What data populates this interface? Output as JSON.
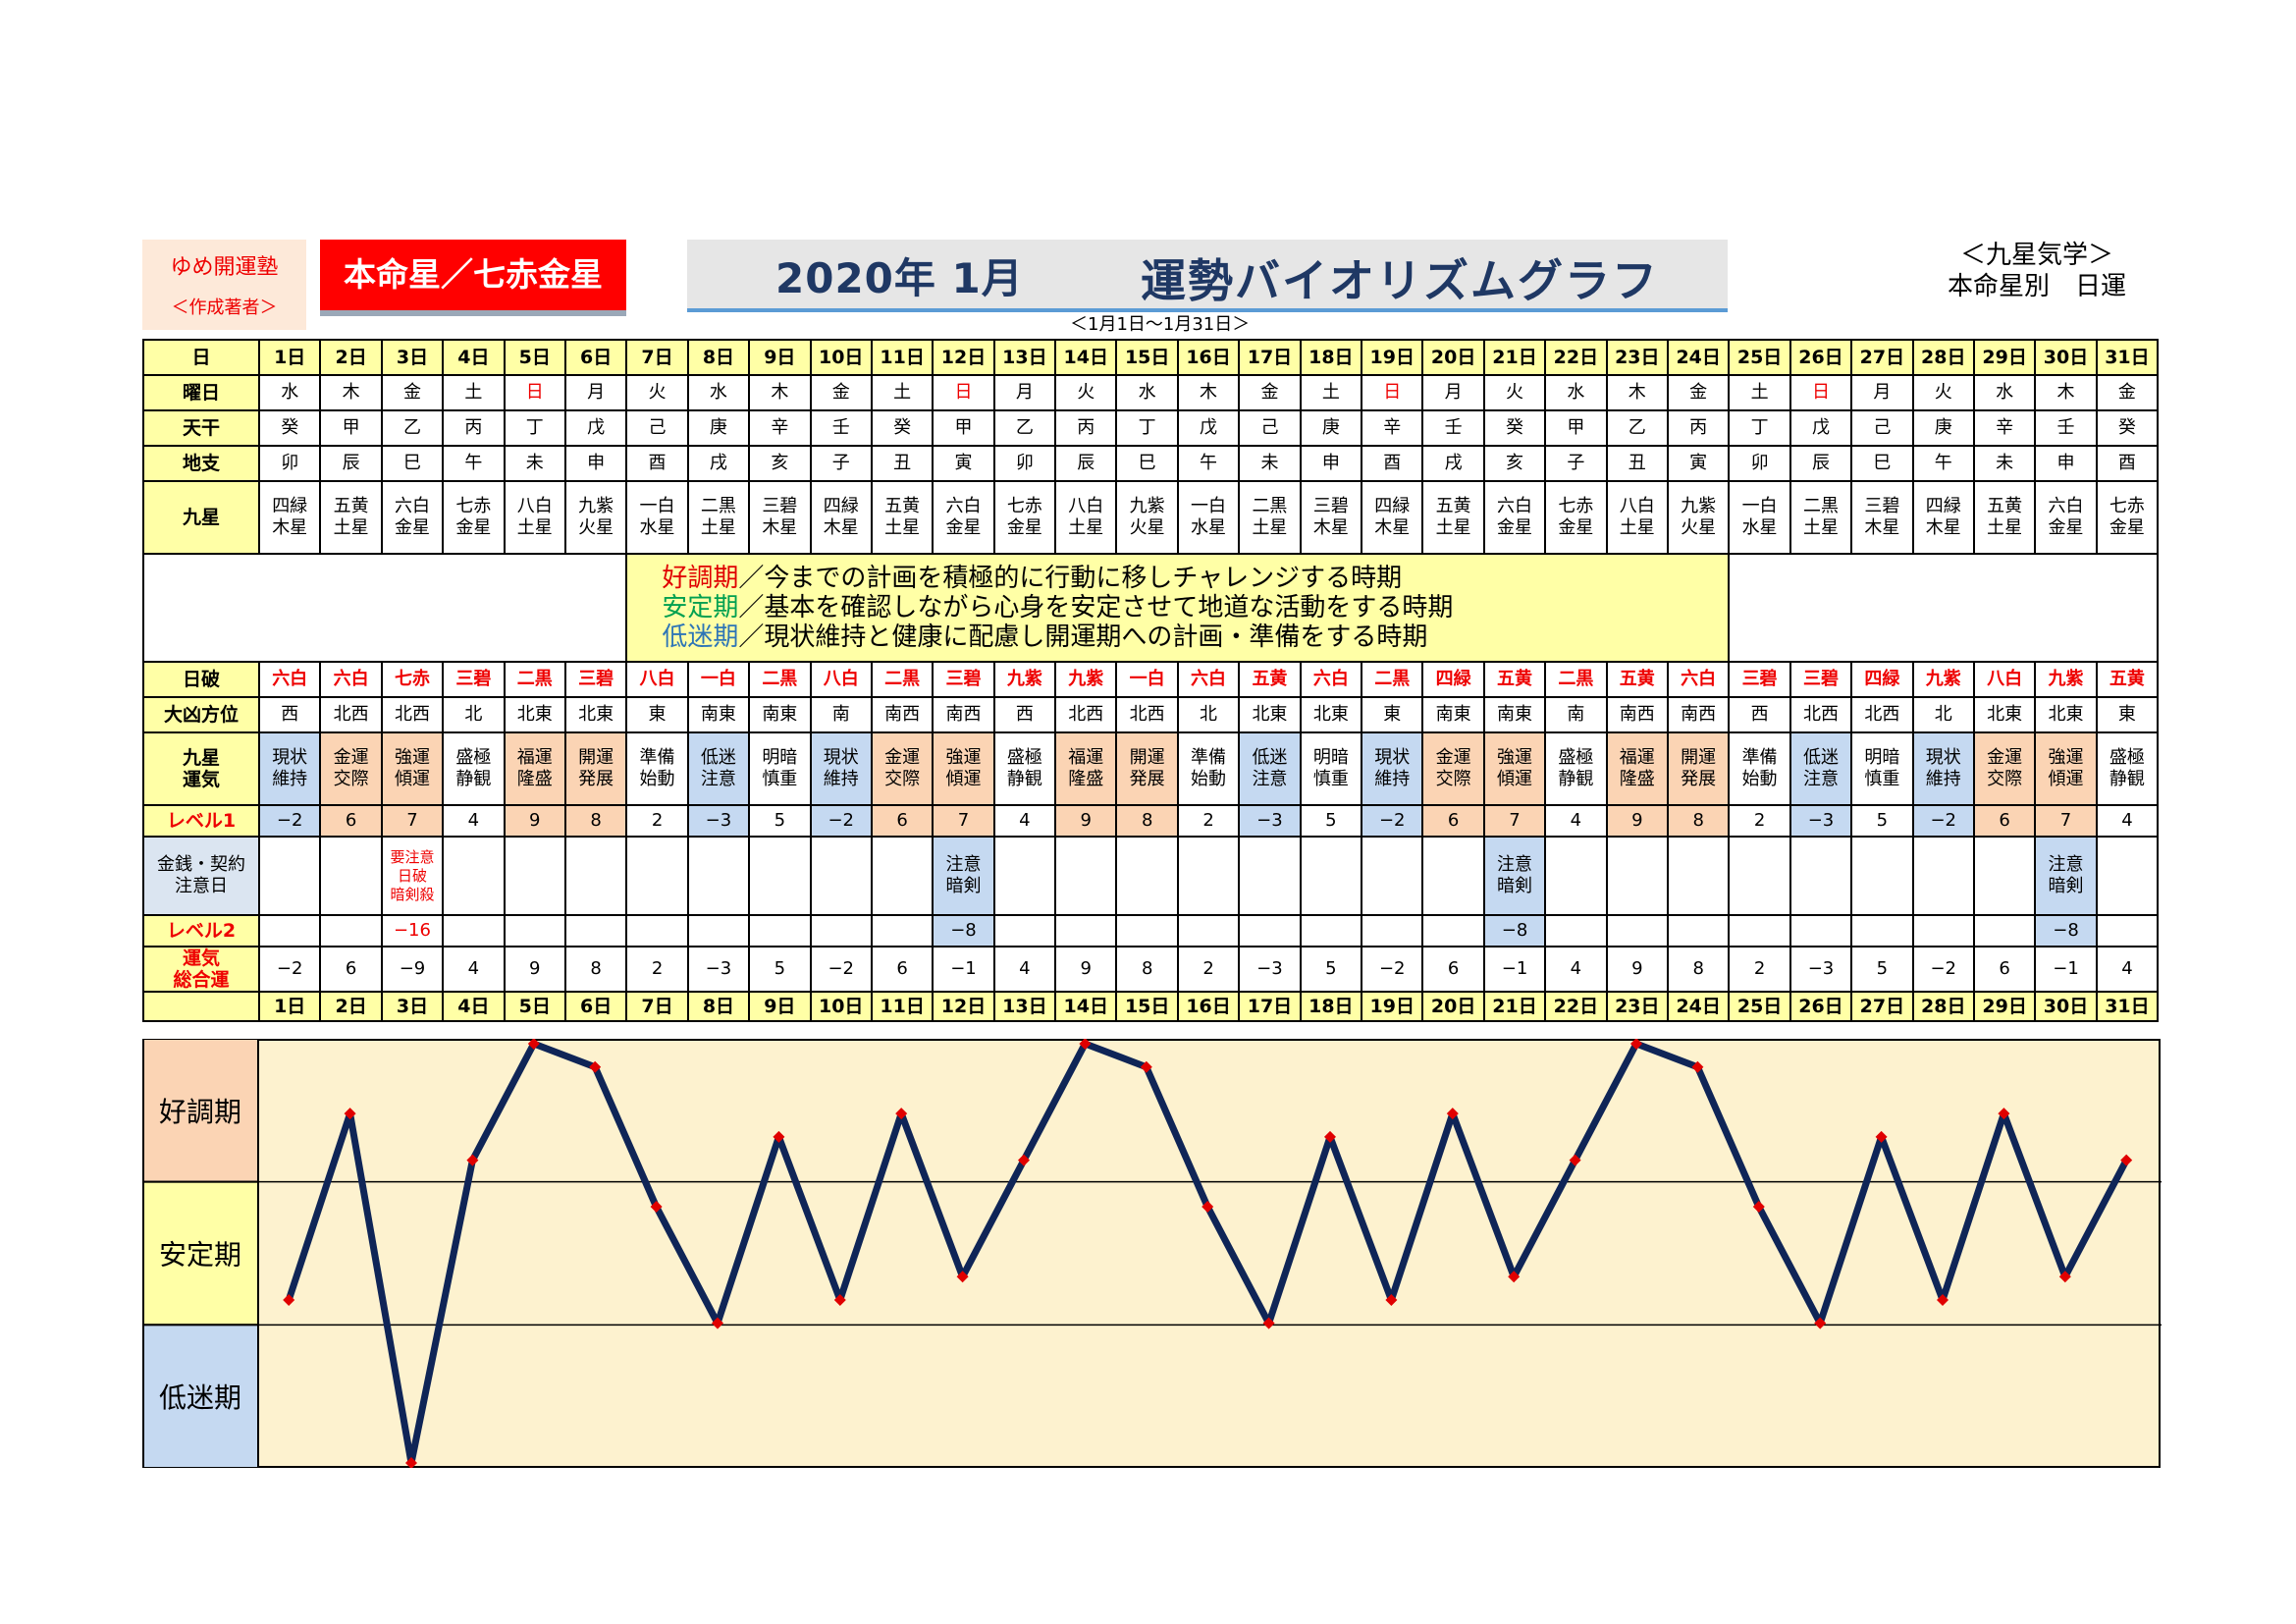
{
  "header": {
    "school_name": "ゆめ開運塾",
    "author_note": "＜作成著者＞",
    "honmei": "本命星／七赤金星",
    "title_year": "2020年 1月",
    "title_main": "運勢バイオリズムグラフ",
    "range": "＜1月1日～1月31日＞",
    "kyusei_line1": "＜九星気学＞",
    "kyusei_line2": "本命星別　日運"
  },
  "row_labels": {
    "day": "日",
    "weekday": "曜日",
    "tenkan": "天干",
    "chishi": "地支",
    "kyusei": "九星",
    "nippa": "日破",
    "daikyo": "大凶方位",
    "unki_1": "九星",
    "unki_2": "運気",
    "level1": "レベル1",
    "kinsen_1": "金銭・契約",
    "kinsen_2": "注意日",
    "level2": "レベル2",
    "sogo_1": "運気",
    "sogo_2": "総合運"
  },
  "legend": [
    {
      "term": "好調期",
      "text": "／今までの計画を積極的に行動に移しチャレンジする時期",
      "color": "#e00000"
    },
    {
      "term": "安定期",
      "text": "／基本を確認しながら心身を安定させて地道な活動をする時期",
      "color": "#00a050"
    },
    {
      "term": "低迷期",
      "text": "／現状維持と健康に配慮し開運期への計画・準備をする時期",
      "color": "#2e75b6"
    }
  ],
  "zones": [
    "好調期",
    "安定期",
    "低迷期"
  ],
  "zone_colors": {
    "high": "#fbd4b4",
    "mid": "#ffffa6",
    "low": "#c5d9f1",
    "plot_bg": "#fdf2cf",
    "line": "#0f2557",
    "marker": "#e00000"
  },
  "days": [
    {
      "d": "1日",
      "w": "水",
      "s": false,
      "t": "癸",
      "c": "卯",
      "k1": "四緑",
      "k2": "木星",
      "h": "六白",
      "o": "西",
      "u1": "現状",
      "u2": "維持",
      "ut": "neg",
      "l1": "−2",
      "kz": "",
      "l2": "",
      "tot": "−2"
    },
    {
      "d": "2日",
      "w": "木",
      "s": false,
      "t": "甲",
      "c": "辰",
      "k1": "五黄",
      "k2": "土星",
      "h": "六白",
      "o": "北西",
      "u1": "金運",
      "u2": "交際",
      "ut": "pos",
      "l1": "6",
      "kz": "",
      "l2": "",
      "tot": "6"
    },
    {
      "d": "3日",
      "w": "金",
      "s": false,
      "t": "乙",
      "c": "巳",
      "k1": "六白",
      "k2": "金星",
      "h": "七赤",
      "o": "北西",
      "u1": "強運",
      "u2": "傾運",
      "ut": "pos",
      "l1": "7",
      "kz": "要注意\n日破\n暗剣殺",
      "kzt": "warn",
      "l2": "−16",
      "tot": "−9"
    },
    {
      "d": "4日",
      "w": "土",
      "s": false,
      "t": "丙",
      "c": "午",
      "k1": "七赤",
      "k2": "金星",
      "h": "三碧",
      "o": "北",
      "u1": "盛極",
      "u2": "静観",
      "ut": "neu",
      "l1": "4",
      "kz": "",
      "l2": "",
      "tot": "4"
    },
    {
      "d": "5日",
      "w": "日",
      "s": true,
      "t": "丁",
      "c": "未",
      "k1": "八白",
      "k2": "土星",
      "h": "二黒",
      "o": "北東",
      "u1": "福運",
      "u2": "隆盛",
      "ut": "pos",
      "l1": "9",
      "kz": "",
      "l2": "",
      "tot": "9"
    },
    {
      "d": "6日",
      "w": "月",
      "s": false,
      "t": "戊",
      "c": "申",
      "k1": "九紫",
      "k2": "火星",
      "h": "三碧",
      "o": "北東",
      "u1": "開運",
      "u2": "発展",
      "ut": "pos",
      "l1": "8",
      "kz": "",
      "l2": "",
      "tot": "8"
    },
    {
      "d": "7日",
      "w": "火",
      "s": false,
      "t": "己",
      "c": "酉",
      "k1": "一白",
      "k2": "水星",
      "h": "八白",
      "o": "東",
      "u1": "準備",
      "u2": "始動",
      "ut": "neu",
      "l1": "2",
      "kz": "",
      "l2": "",
      "tot": "2"
    },
    {
      "d": "8日",
      "w": "水",
      "s": false,
      "t": "庚",
      "c": "戌",
      "k1": "二黒",
      "k2": "土星",
      "h": "一白",
      "o": "南東",
      "u1": "低迷",
      "u2": "注意",
      "ut": "neg",
      "l1": "−3",
      "kz": "",
      "l2": "",
      "tot": "−3"
    },
    {
      "d": "9日",
      "w": "木",
      "s": false,
      "t": "辛",
      "c": "亥",
      "k1": "三碧",
      "k2": "木星",
      "h": "二黒",
      "o": "南東",
      "u1": "明暗",
      "u2": "慎重",
      "ut": "neu",
      "l1": "5",
      "kz": "",
      "l2": "",
      "tot": "5"
    },
    {
      "d": "10日",
      "w": "金",
      "s": false,
      "t": "壬",
      "c": "子",
      "k1": "四緑",
      "k2": "木星",
      "h": "八白",
      "o": "南",
      "u1": "現状",
      "u2": "維持",
      "ut": "neg",
      "l1": "−2",
      "kz": "",
      "l2": "",
      "tot": "−2"
    },
    {
      "d": "11日",
      "w": "土",
      "s": false,
      "t": "癸",
      "c": "丑",
      "k1": "五黄",
      "k2": "土星",
      "h": "二黒",
      "o": "南西",
      "u1": "金運",
      "u2": "交際",
      "ut": "pos",
      "l1": "6",
      "kz": "",
      "l2": "",
      "tot": "6"
    },
    {
      "d": "12日",
      "w": "日",
      "s": true,
      "t": "甲",
      "c": "寅",
      "k1": "六白",
      "k2": "金星",
      "h": "三碧",
      "o": "南西",
      "u1": "強運",
      "u2": "傾運",
      "ut": "pos",
      "l1": "7",
      "kz": "注意\n暗剣",
      "kzt": "blue",
      "l2": "−8",
      "tot": "−1"
    },
    {
      "d": "13日",
      "w": "月",
      "s": false,
      "t": "乙",
      "c": "卯",
      "k1": "七赤",
      "k2": "金星",
      "h": "九紫",
      "o": "西",
      "u1": "盛極",
      "u2": "静観",
      "ut": "neu",
      "l1": "4",
      "kz": "",
      "l2": "",
      "tot": "4"
    },
    {
      "d": "14日",
      "w": "火",
      "s": false,
      "t": "丙",
      "c": "辰",
      "k1": "八白",
      "k2": "土星",
      "h": "九紫",
      "o": "北西",
      "u1": "福運",
      "u2": "隆盛",
      "ut": "pos",
      "l1": "9",
      "kz": "",
      "l2": "",
      "tot": "9"
    },
    {
      "d": "15日",
      "w": "水",
      "s": false,
      "t": "丁",
      "c": "巳",
      "k1": "九紫",
      "k2": "火星",
      "h": "一白",
      "o": "北西",
      "u1": "開運",
      "u2": "発展",
      "ut": "pos",
      "l1": "8",
      "kz": "",
      "l2": "",
      "tot": "8"
    },
    {
      "d": "16日",
      "w": "木",
      "s": false,
      "t": "戊",
      "c": "午",
      "k1": "一白",
      "k2": "水星",
      "h": "六白",
      "o": "北",
      "u1": "準備",
      "u2": "始動",
      "ut": "neu",
      "l1": "2",
      "kz": "",
      "l2": "",
      "tot": "2"
    },
    {
      "d": "17日",
      "w": "金",
      "s": false,
      "t": "己",
      "c": "未",
      "k1": "二黒",
      "k2": "土星",
      "h": "五黄",
      "o": "北東",
      "u1": "低迷",
      "u2": "注意",
      "ut": "neg",
      "l1": "−3",
      "kz": "",
      "l2": "",
      "tot": "−3"
    },
    {
      "d": "18日",
      "w": "土",
      "s": false,
      "t": "庚",
      "c": "申",
      "k1": "三碧",
      "k2": "木星",
      "h": "六白",
      "o": "北東",
      "u1": "明暗",
      "u2": "慎重",
      "ut": "neu",
      "l1": "5",
      "kz": "",
      "l2": "",
      "tot": "5"
    },
    {
      "d": "19日",
      "w": "日",
      "s": true,
      "t": "辛",
      "c": "酉",
      "k1": "四緑",
      "k2": "木星",
      "h": "二黒",
      "o": "東",
      "u1": "現状",
      "u2": "維持",
      "ut": "neg",
      "l1": "−2",
      "kz": "",
      "l2": "",
      "tot": "−2"
    },
    {
      "d": "20日",
      "w": "月",
      "s": false,
      "t": "壬",
      "c": "戌",
      "k1": "五黄",
      "k2": "土星",
      "h": "四緑",
      "o": "南東",
      "u1": "金運",
      "u2": "交際",
      "ut": "pos",
      "l1": "6",
      "kz": "",
      "l2": "",
      "tot": "6"
    },
    {
      "d": "21日",
      "w": "火",
      "s": false,
      "t": "癸",
      "c": "亥",
      "k1": "六白",
      "k2": "金星",
      "h": "五黄",
      "o": "南東",
      "u1": "強運",
      "u2": "傾運",
      "ut": "pos",
      "l1": "7",
      "kz": "注意\n暗剣",
      "kzt": "blue",
      "l2": "−8",
      "tot": "−1"
    },
    {
      "d": "22日",
      "w": "水",
      "s": false,
      "t": "甲",
      "c": "子",
      "k1": "七赤",
      "k2": "金星",
      "h": "二黒",
      "o": "南",
      "u1": "盛極",
      "u2": "静観",
      "ut": "neu",
      "l1": "4",
      "kz": "",
      "l2": "",
      "tot": "4"
    },
    {
      "d": "23日",
      "w": "木",
      "s": false,
      "t": "乙",
      "c": "丑",
      "k1": "八白",
      "k2": "土星",
      "h": "五黄",
      "o": "南西",
      "u1": "福運",
      "u2": "隆盛",
      "ut": "pos",
      "l1": "9",
      "kz": "",
      "l2": "",
      "tot": "9"
    },
    {
      "d": "24日",
      "w": "金",
      "s": false,
      "t": "丙",
      "c": "寅",
      "k1": "九紫",
      "k2": "火星",
      "h": "六白",
      "o": "南西",
      "u1": "開運",
      "u2": "発展",
      "ut": "pos",
      "l1": "8",
      "kz": "",
      "l2": "",
      "tot": "8"
    },
    {
      "d": "25日",
      "w": "土",
      "s": false,
      "t": "丁",
      "c": "卯",
      "k1": "一白",
      "k2": "水星",
      "h": "三碧",
      "o": "西",
      "u1": "準備",
      "u2": "始動",
      "ut": "neu",
      "l1": "2",
      "kz": "",
      "l2": "",
      "tot": "2"
    },
    {
      "d": "26日",
      "w": "日",
      "s": true,
      "t": "戊",
      "c": "辰",
      "k1": "二黒",
      "k2": "土星",
      "h": "三碧",
      "o": "北西",
      "u1": "低迷",
      "u2": "注意",
      "ut": "neg",
      "l1": "−3",
      "kz": "",
      "l2": "",
      "tot": "−3"
    },
    {
      "d": "27日",
      "w": "月",
      "s": false,
      "t": "己",
      "c": "巳",
      "k1": "三碧",
      "k2": "木星",
      "h": "四緑",
      "o": "北西",
      "u1": "明暗",
      "u2": "慎重",
      "ut": "neu",
      "l1": "5",
      "kz": "",
      "l2": "",
      "tot": "5"
    },
    {
      "d": "28日",
      "w": "火",
      "s": false,
      "t": "庚",
      "c": "午",
      "k1": "四緑",
      "k2": "木星",
      "h": "九紫",
      "o": "北",
      "u1": "現状",
      "u2": "維持",
      "ut": "neg",
      "l1": "−2",
      "kz": "",
      "l2": "",
      "tot": "−2"
    },
    {
      "d": "29日",
      "w": "水",
      "s": false,
      "t": "辛",
      "c": "未",
      "k1": "五黄",
      "k2": "土星",
      "h": "八白",
      "o": "北東",
      "u1": "金運",
      "u2": "交際",
      "ut": "pos",
      "l1": "6",
      "kz": "",
      "l2": "",
      "tot": "6"
    },
    {
      "d": "30日",
      "w": "木",
      "s": false,
      "t": "壬",
      "c": "申",
      "k1": "六白",
      "k2": "金星",
      "h": "九紫",
      "o": "北東",
      "u1": "強運",
      "u2": "傾運",
      "ut": "pos",
      "l1": "7",
      "kz": "注意\n暗剣",
      "kzt": "blue",
      "l2": "−8",
      "tot": "−1"
    },
    {
      "d": "31日",
      "w": "金",
      "s": false,
      "t": "癸",
      "c": "酉",
      "k1": "七赤",
      "k2": "金星",
      "h": "五黄",
      "o": "東",
      "u1": "盛極",
      "u2": "静観",
      "ut": "neu",
      "l1": "4",
      "kz": "",
      "l2": "",
      "tot": "4"
    }
  ],
  "chart_data": {
    "type": "line",
    "x": [
      "1日",
      "2日",
      "3日",
      "4日",
      "5日",
      "6日",
      "7日",
      "8日",
      "9日",
      "10日",
      "11日",
      "12日",
      "13日",
      "14日",
      "15日",
      "16日",
      "17日",
      "18日",
      "19日",
      "20日",
      "21日",
      "22日",
      "23日",
      "24日",
      "25日",
      "26日",
      "27日",
      "28日",
      "29日",
      "30日",
      "31日"
    ],
    "series": [
      {
        "values": [
          -2,
          6,
          -9,
          4,
          9,
          8,
          2,
          -3,
          5,
          -2,
          6,
          -1,
          4,
          9,
          8,
          2,
          -3,
          5,
          -2,
          6,
          -1,
          4,
          9,
          8,
          2,
          -3,
          5,
          -2,
          6,
          -1,
          4
        ]
      }
    ],
    "ylim": [
      -9,
      9
    ],
    "bands": [
      "好調期",
      "安定期",
      "低迷期"
    ],
    "grid": false
  }
}
